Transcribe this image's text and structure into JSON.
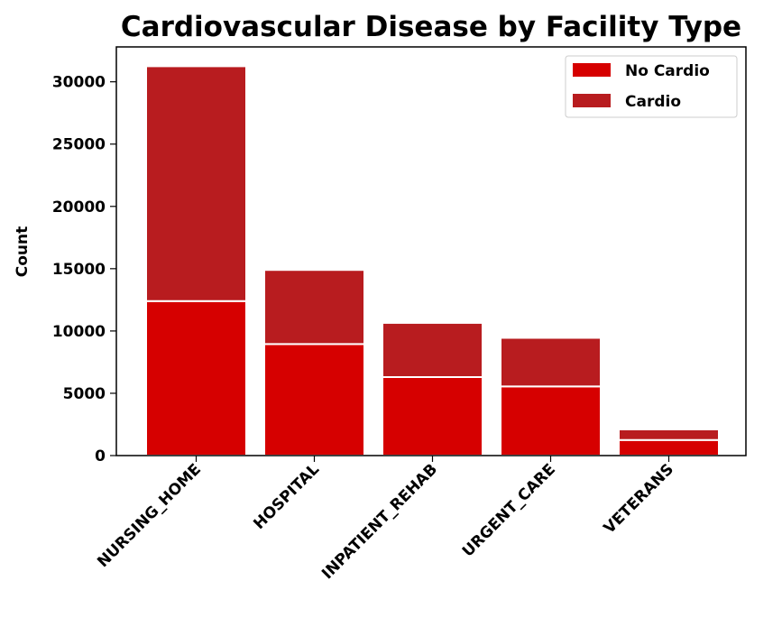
{
  "chart_data": {
    "type": "bar",
    "stacked": true,
    "title": "Cardiovascular Disease by Facility Type",
    "xlabel": "",
    "ylabel": "Count",
    "ylim": [
      0,
      32800
    ],
    "yticks": [
      0,
      5000,
      10000,
      15000,
      20000,
      25000,
      30000
    ],
    "grid": false,
    "legend_position": "top-right",
    "categories": [
      "NURSING_HOME",
      "HOSPITAL",
      "INPATIENT_REHAB",
      "URGENT_CARE",
      "VETERANS"
    ],
    "series": [
      {
        "name": "No Cardio",
        "color": "#d60000",
        "values": [
          12400,
          8950,
          6300,
          5550,
          1250
        ]
      },
      {
        "name": "Cardio",
        "color": "#b81c1f",
        "values": [
          18850,
          5950,
          4350,
          3900,
          850
        ]
      }
    ]
  }
}
